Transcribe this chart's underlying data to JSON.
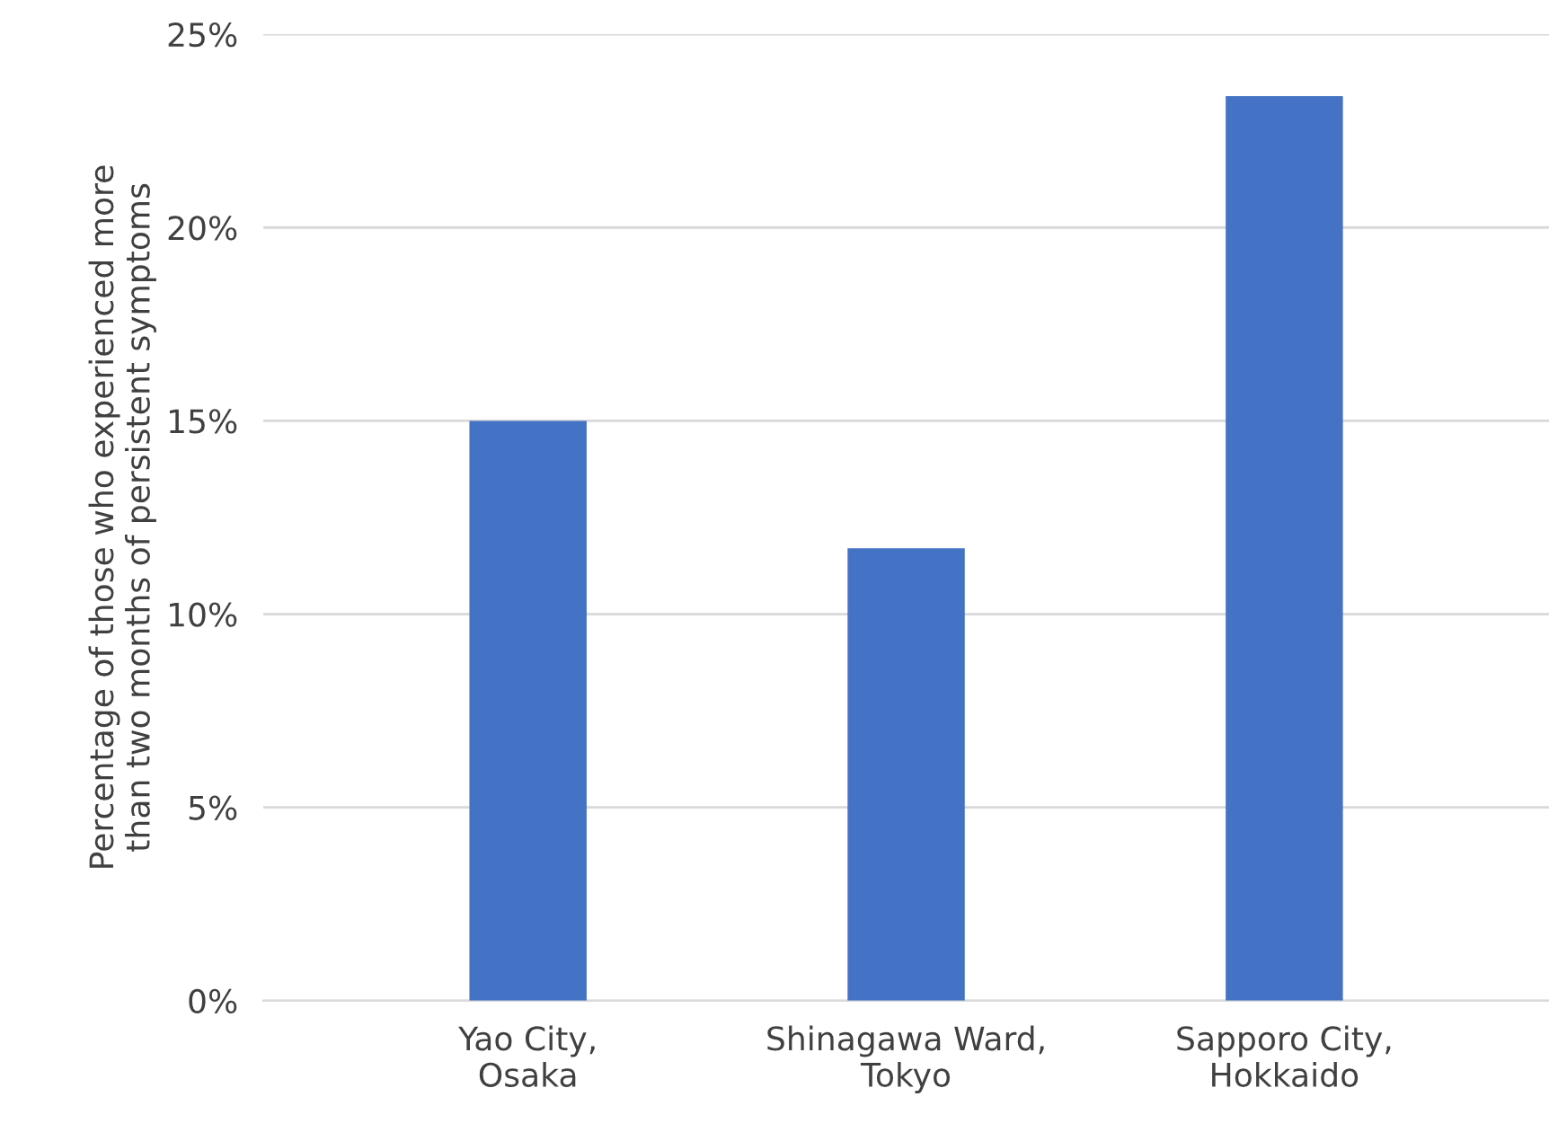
{
  "chart_data": {
    "type": "bar",
    "ylabel": "Percentage of those who experienced more\nthan two months of persistent symptoms",
    "categories": [
      "Yao City,\nOsaka",
      "Shinagawa Ward,\nTokyo",
      "Sapporo City,\nHokkaido"
    ],
    "values": [
      15.0,
      11.7,
      23.4
    ],
    "color": "#4472c4",
    "ylim": [
      0,
      25
    ],
    "yticks": [
      {
        "value": 0,
        "label": "0%"
      },
      {
        "value": 5,
        "label": "5%"
      },
      {
        "value": 10,
        "label": "10%"
      },
      {
        "value": 15,
        "label": "15%"
      },
      {
        "value": 20,
        "label": "20%"
      },
      {
        "value": 25,
        "label": "25%"
      }
    ],
    "grid": "y"
  }
}
